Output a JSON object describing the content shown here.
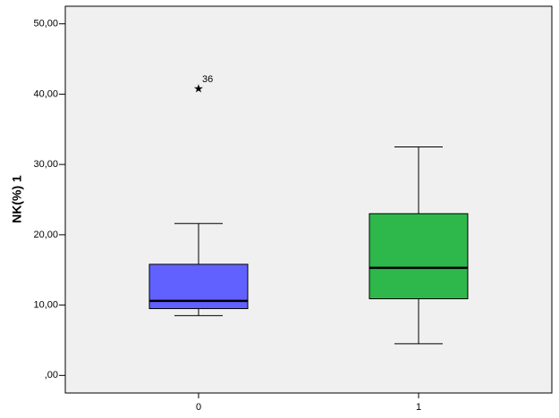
{
  "chart_data": {
    "type": "box",
    "y_label": "NK(%) 1",
    "categories": [
      "0",
      "1"
    ],
    "series": [
      {
        "color": "#6161ff",
        "whisker_low": [
          8.5,
          null
        ],
        "q1": [
          9.5,
          null
        ],
        "median": [
          10.6,
          null
        ],
        "q3": [
          15.8,
          null
        ],
        "whisker_high": [
          21.6,
          null
        ],
        "outliers": [
          [
            {
              "value": 40.8,
              "case": "36"
            }
          ],
          []
        ]
      },
      {
        "color": "#2eb84b",
        "whisker_low": [
          null,
          4.5
        ],
        "q1": [
          null,
          10.9
        ],
        "median": [
          null,
          15.3
        ],
        "q3": [
          null,
          23.0
        ],
        "whisker_high": [
          null,
          32.5
        ],
        "outliers": [
          [],
          []
        ]
      }
    ],
    "ylim": [
      -2.5,
      52.5
    ],
    "yticks": [
      {
        "value": 0,
        "label": ",00"
      },
      {
        "value": 10,
        "label": "10,00"
      },
      {
        "value": 20,
        "label": "20,00"
      },
      {
        "value": 30,
        "label": "30,00"
      },
      {
        "value": 40,
        "label": "40,00"
      },
      {
        "value": 50,
        "label": "50,00"
      }
    ]
  }
}
